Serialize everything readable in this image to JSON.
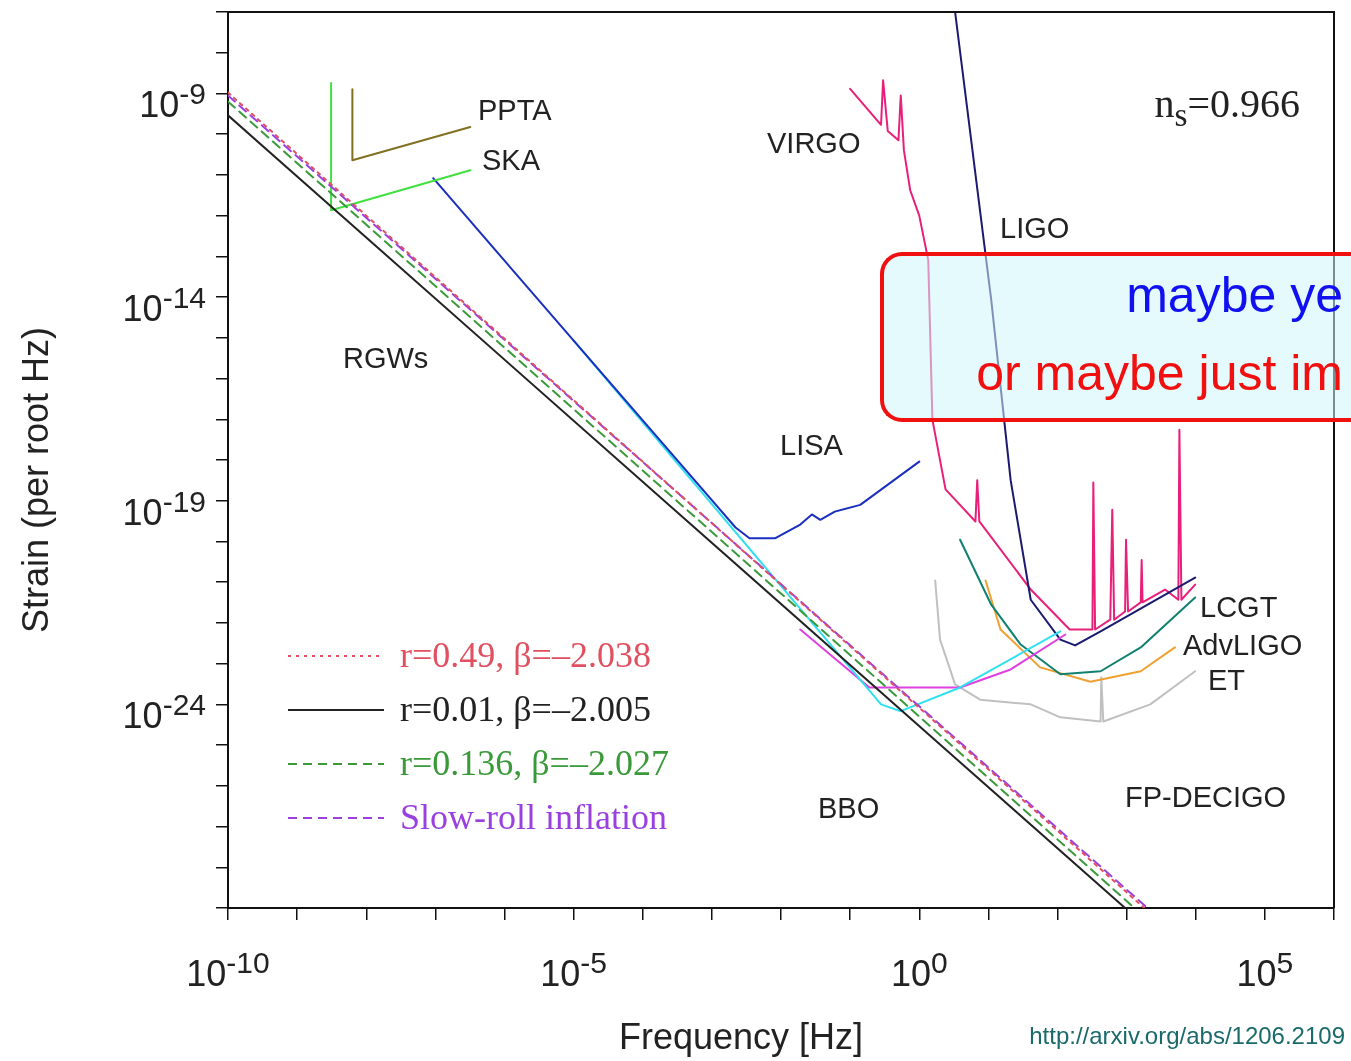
{
  "chart_data": {
    "type": "line",
    "xlabel": "Frequency [Hz]",
    "ylabel": "Strain (per root Hz)",
    "log": "xy",
    "legend": "bottom left",
    "marker": "none",
    "xlim": [
      1e-10,
      1000000.0
    ],
    "ylim": [
      1e-29,
      1e-07
    ],
    "xticks": [
      {
        "value": 1e-10,
        "label": "10$^{-10}$"
      },
      {
        "value": 1e-09,
        "label": null
      },
      {
        "value": 1e-08,
        "label": null
      },
      {
        "value": 1e-07,
        "label": null
      },
      {
        "value": 1e-06,
        "label": null
      },
      {
        "value": 1e-05,
        "label": "10$^{-5}$"
      },
      {
        "value": 0.0001,
        "label": null
      },
      {
        "value": 0.001,
        "label": null
      },
      {
        "value": 0.01,
        "label": null
      },
      {
        "value": 0.1,
        "label": null
      },
      {
        "value": 1,
        "label": "10$^{0}$"
      },
      {
        "value": 10,
        "label": null
      },
      {
        "value": 100,
        "label": null
      },
      {
        "value": 1000,
        "label": null
      },
      {
        "value": 10000,
        "label": null
      },
      {
        "value": 100000,
        "label": "10$^{5}$"
      },
      {
        "value": 1000000,
        "label": null
      }
    ],
    "yticks": [
      {
        "value": 1e-29,
        "label": null
      },
      {
        "value": 1e-28,
        "label": null
      },
      {
        "value": 1e-27,
        "label": null
      },
      {
        "value": 1e-26,
        "label": null
      },
      {
        "value": 1e-25,
        "label": null
      },
      {
        "value": 1e-24,
        "label": "10$^{-24}$"
      },
      {
        "value": 1e-23,
        "label": null
      },
      {
        "value": 1e-22,
        "label": null
      },
      {
        "value": 1e-21,
        "label": null
      },
      {
        "value": 1e-20,
        "label": null
      },
      {
        "value": 1e-19,
        "label": "10$^{-19}$"
      },
      {
        "value": 1e-18,
        "label": null
      },
      {
        "value": 1e-17,
        "label": null
      },
      {
        "value": 1e-16,
        "label": null
      },
      {
        "value": 1e-15,
        "label": null
      },
      {
        "value": 1e-14,
        "label": "10$^{-14}$"
      },
      {
        "value": 1e-13,
        "label": null
      },
      {
        "value": 1e-12,
        "label": null
      },
      {
        "value": 1e-11,
        "label": null
      },
      {
        "value": 1e-10,
        "label": null
      },
      {
        "value": 1e-09,
        "label": "10$^{-9}$"
      },
      {
        "value": 1e-08,
        "label": null
      },
      {
        "value": 1e-07,
        "label": null
      }
    ],
    "series": [
      {
        "name": "r=0.49, β=–2.038",
        "color": "#e05060",
        "line_style": "dotted",
        "x": [
          1e-10,
          1800
        ],
        "values": [
          1.05e-09,
          1e-29
        ]
      },
      {
        "name": "r=0.01, β=–2.005",
        "color": "#222222",
        "line_style": "solid",
        "x": [
          1e-10,
          950
        ],
        "values": [
          2.9e-10,
          1e-29
        ]
      },
      {
        "name": "r=0.136, β=–2.027",
        "color": "#3a9a3a",
        "line_style": "dashed",
        "x": [
          1e-10,
          1300
        ],
        "values": [
          6.3e-10,
          1e-29
        ]
      },
      {
        "name": "Slow-roll inflation",
        "color": "#9a40e0",
        "line_style": "dashed",
        "x": [
          1e-10,
          2000
        ],
        "values": [
          8.9e-10,
          1e-29
        ]
      },
      {
        "color": "#807020",
        "line_style": "solid",
        "x": [
          6.3e-09,
          6.3e-09,
          3.2e-07
        ],
        "values": [
          1.26e-09,
          2.3e-11,
          1.5e-10
        ]
      },
      {
        "color": "#40e040",
        "line_style": "solid",
        "x": [
          3.1e-09,
          3.1e-09,
          3.2e-07
        ],
        "values": [
          1.8e-09,
          1.35e-12,
          1.3e-11
        ]
      },
      {
        "color": "#1a2fbf",
        "line_style": "solid",
        "x": [
          9.3e-08,
          9.8e-06,
          0.0022,
          0.0035,
          0.0083,
          0.019,
          0.028,
          0.037,
          0.06,
          0.14,
          1.0
        ],
        "values": [
          8.3e-12,
          8.9e-16,
          2.2e-20,
          1.2e-20,
          1.2e-20,
          2.6e-20,
          4.6e-20,
          3.4e-20,
          5.4e-20,
          7.9e-20,
          9.1e-19
        ]
      },
      {
        "color": "#30e0f0",
        "line_style": "solid",
        "x": [
          9.8e-06,
          0.28,
          0.54,
          3.9,
          110
        ],
        "values": [
          8.9e-16,
          1e-24,
          6.8e-25,
          2.6e-24,
          6.2e-23
        ]
      },
      {
        "color": "#e040e0",
        "line_style": "solid",
        "x": [
          0.019,
          0.19,
          3.9,
          21,
          130
        ],
        "values": [
          6.9e-23,
          2.6e-24,
          2.6e-24,
          7.2e-24,
          5.2e-23
        ]
      },
      {
        "color": "#1a1a70",
        "line_style": "solid",
        "x": [
          3.3,
          11,
          21,
          41,
          110,
          180,
          420,
          9800
        ],
        "values": [
          1e-07,
          8.5e-15,
          3.2e-19,
          3.7e-22,
          3.9e-23,
          2.8e-23,
          6.2e-23,
          1.3e-21
        ]
      },
      {
        "color": "#e8207a",
        "line_style": "solid",
        "x": [
          0.1,
          0.28,
          0.3,
          0.35,
          0.5,
          0.54,
          0.6,
          0.74,
          1.0,
          1.35,
          1.55,
          2.4,
          6.5,
          6.9,
          7.4,
          41,
          150,
          320,
          330,
          350,
          580,
          620,
          660,
          950,
          980,
          1050,
          1600,
          1650,
          1700,
          3600,
          5600,
          5800,
          6200,
          9800
        ],
        "values": [
          1.3e-09,
          1.7e-10,
          2.1e-09,
          1.2e-10,
          7.1e-11,
          8.9e-10,
          4e-11,
          4.2e-12,
          1e-12,
          8.1e-14,
          9.8e-18,
          1.9e-19,
          3.1e-20,
          3.2e-19,
          3.1e-20,
          6.6e-22,
          6.9e-23,
          6.9e-23,
          2.8e-19,
          6.9e-23,
          1.2e-22,
          6e-20,
          1.2e-22,
          1.9e-22,
          1.1e-20,
          1.9e-22,
          3.2e-22,
          3.5e-21,
          3.2e-22,
          6.6e-22,
          3.7e-22,
          5.5e-18,
          3.7e-22,
          8.7e-22
        ]
      },
      {
        "color": "#108070",
        "line_style": "solid",
        "x": [
          3.9,
          11,
          29,
          110,
          420,
          1600,
          9800
        ],
        "values": [
          1.1e-20,
          2.8e-22,
          3e-23,
          5.5e-24,
          6.5e-24,
          2.5e-23,
          4.2e-22
        ]
      },
      {
        "color": "#f0a030",
        "line_style": "solid",
        "x": [
          9.1,
          15,
          56,
          300,
          1600,
          5000
        ],
        "values": [
          1.1e-21,
          6.9e-23,
          8.1e-24,
          3.6e-24,
          6.5e-24,
          2.5e-23
        ]
      },
      {
        "color": "#c0c0c0",
        "line_style": "solid",
        "x": [
          1.7,
          2,
          3.3,
          7.6,
          41,
          110,
          420,
          430,
          460,
          2200,
          9800
        ],
        "values": [
          1.1e-21,
          3.9e-23,
          3.1e-24,
          1.3e-24,
          1e-24,
          4.8e-25,
          3.8e-25,
          4.6e-24,
          3.8e-25,
          1e-24,
          6.5e-24
        ]
      }
    ],
    "annotations": [
      "PPTA",
      "SKA",
      "VIRGO",
      "LIGO",
      "RGWs",
      "LISA",
      "LCGT",
      "AdvLIGO",
      "ET",
      "BBO",
      "FP-DECIGO",
      "n$_{s}$=0.966",
      "maybe ye",
      "or maybe just im",
      "http://arxiv.org/abs/1206.2109"
    ]
  }
}
